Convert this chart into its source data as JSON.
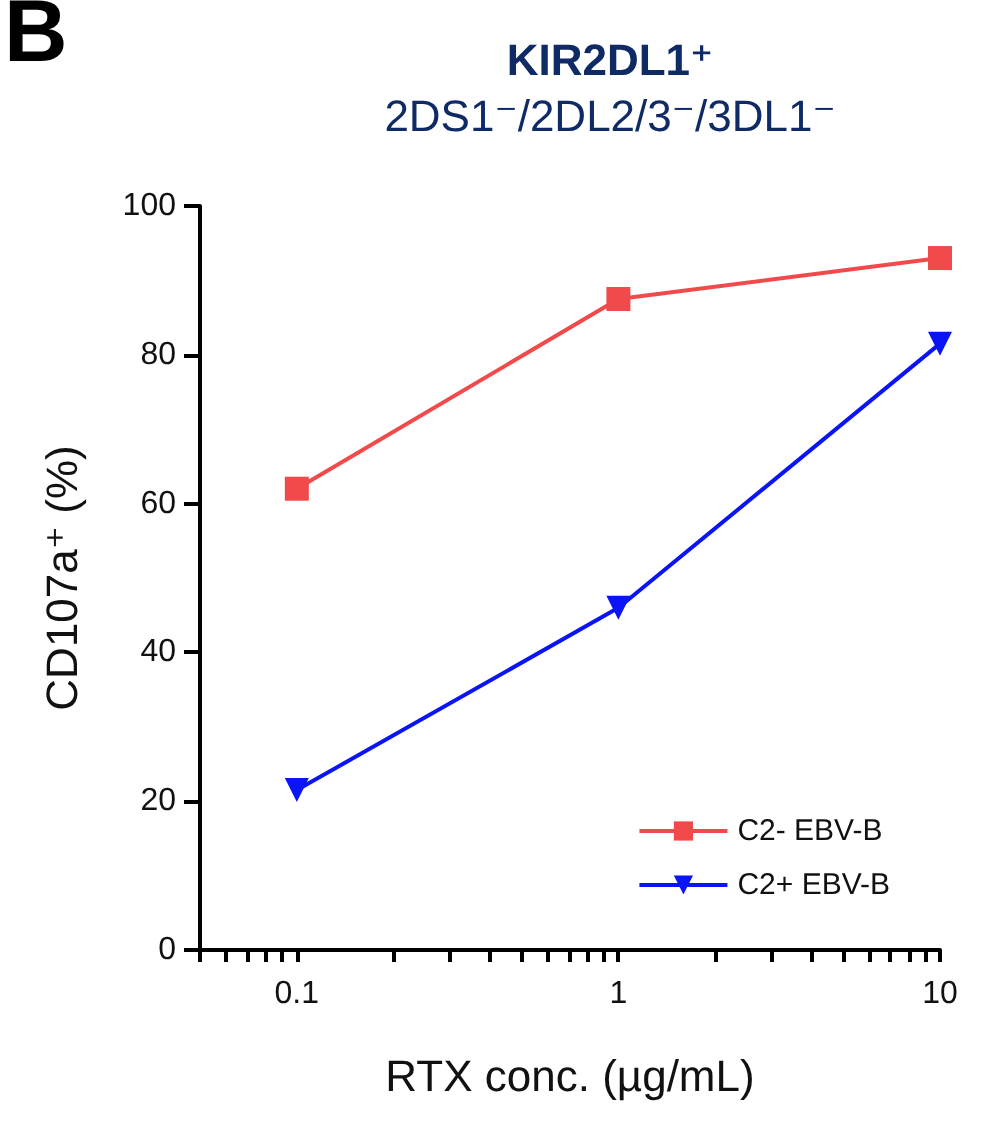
{
  "chart_data": {
    "type": "line",
    "title": "KIR2DL1⁺",
    "subtitle": "2DS1⁻/2DL2/3⁻/3DL1⁻",
    "xlabel": "RTX conc. (µg/mL)",
    "ylabel": "CD107a⁺ (%)",
    "annotations": [
      "B"
    ],
    "x": [
      0.1,
      1,
      10
    ],
    "series": [
      {
        "name": "C2- EBV-B",
        "color": "#f24a4a",
        "marker": "square",
        "values": [
          62,
          87.5,
          93
        ]
      },
      {
        "name": "C2+ EBV-B",
        "color": "#0a14f5",
        "marker": "triangle-down",
        "values": [
          21.5,
          46,
          81.5
        ]
      }
    ],
    "log": "x",
    "xlim": [
      0.05,
      10
    ],
    "xticks": [
      {
        "value": 0.05,
        "label": null
      },
      {
        "value": 0.06,
        "label": null
      },
      {
        "value": 0.07,
        "label": null
      },
      {
        "value": 0.08,
        "label": null
      },
      {
        "value": 0.09,
        "label": null
      },
      0.1,
      {
        "value": 0.2,
        "label": null
      },
      {
        "value": 0.3,
        "label": null
      },
      {
        "value": 0.4,
        "label": null
      },
      {
        "value": 0.5,
        "label": null
      },
      {
        "value": 0.6,
        "label": null
      },
      {
        "value": 0.7,
        "label": null
      },
      {
        "value": 0.8,
        "label": null
      },
      {
        "value": 0.9,
        "label": null
      },
      1,
      {
        "value": 2,
        "label": null
      },
      {
        "value": 3,
        "label": null
      },
      {
        "value": 4,
        "label": null
      },
      {
        "value": 5,
        "label": null
      },
      {
        "value": 6,
        "label": null
      },
      {
        "value": 7,
        "label": null
      },
      {
        "value": 8,
        "label": null
      },
      {
        "value": 9,
        "label": null
      },
      10
    ],
    "ylim": [
      0,
      100
    ],
    "yticks": [
      0,
      20,
      40,
      60,
      80,
      100
    ],
    "grid": false,
    "legend": "bottom right"
  }
}
